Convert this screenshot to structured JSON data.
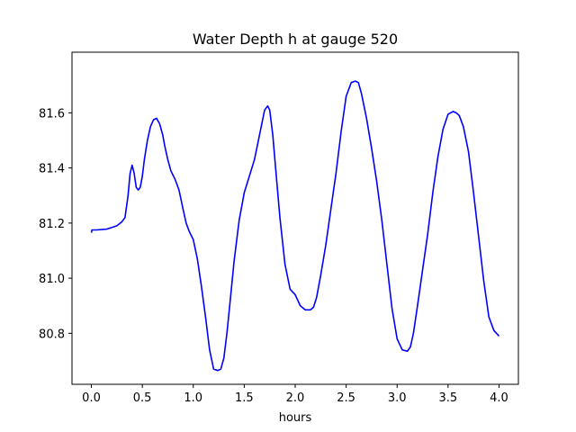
{
  "chart_data": {
    "type": "line",
    "title": "Water Depth h at gauge 520",
    "xlabel": "hours",
    "ylabel": "",
    "xlim": [
      -0.19,
      4.19
    ],
    "ylim": [
      80.615,
      81.82
    ],
    "xticks": [
      0.0,
      0.5,
      1.0,
      1.5,
      2.0,
      2.5,
      3.0,
      3.5,
      4.0
    ],
    "xtick_labels": [
      "0.0",
      "0.5",
      "1.0",
      "1.5",
      "2.0",
      "2.5",
      "3.0",
      "3.5",
      "4.0"
    ],
    "yticks": [
      80.8,
      81.0,
      81.2,
      81.4,
      81.6
    ],
    "ytick_labels": [
      "80.8",
      "81.0",
      "81.2",
      "81.4",
      "81.6"
    ],
    "grid": false,
    "series": [
      {
        "color": "#0000ff",
        "x": [
          0.0,
          0.005,
          0.05,
          0.15,
          0.25,
          0.3,
          0.33,
          0.36,
          0.38,
          0.4,
          0.42,
          0.44,
          0.46,
          0.48,
          0.5,
          0.52,
          0.55,
          0.58,
          0.61,
          0.64,
          0.67,
          0.7,
          0.72,
          0.75,
          0.78,
          0.82,
          0.86,
          0.9,
          0.93,
          0.96,
          1.0,
          1.04,
          1.08,
          1.12,
          1.16,
          1.2,
          1.24,
          1.27,
          1.3,
          1.33,
          1.36,
          1.4,
          1.45,
          1.5,
          1.55,
          1.6,
          1.65,
          1.7,
          1.73,
          1.75,
          1.78,
          1.81,
          1.85,
          1.9,
          1.95,
          2.0,
          2.05,
          2.1,
          2.15,
          2.18,
          2.21,
          2.25,
          2.3,
          2.35,
          2.4,
          2.45,
          2.5,
          2.55,
          2.59,
          2.62,
          2.65,
          2.7,
          2.75,
          2.8,
          2.85,
          2.9,
          2.95,
          3.0,
          3.05,
          3.1,
          3.13,
          3.16,
          3.2,
          3.25,
          3.3,
          3.35,
          3.4,
          3.45,
          3.5,
          3.55,
          3.58,
          3.61,
          3.65,
          3.7,
          3.75,
          3.8,
          3.85,
          3.9,
          3.95,
          4.0
        ],
        "values": [
          81.165,
          81.175,
          81.175,
          81.178,
          81.19,
          81.205,
          81.22,
          81.3,
          81.38,
          81.41,
          81.38,
          81.33,
          81.32,
          81.33,
          81.37,
          81.43,
          81.5,
          81.55,
          81.575,
          81.58,
          81.56,
          81.52,
          81.48,
          81.43,
          81.39,
          81.36,
          81.32,
          81.25,
          81.2,
          81.17,
          81.14,
          81.07,
          80.97,
          80.86,
          80.74,
          80.67,
          80.665,
          80.67,
          80.71,
          80.8,
          80.91,
          81.06,
          81.21,
          81.31,
          81.37,
          81.43,
          81.52,
          81.61,
          81.625,
          81.61,
          81.52,
          81.39,
          81.22,
          81.05,
          80.96,
          80.94,
          80.9,
          80.885,
          80.885,
          80.895,
          80.93,
          81.01,
          81.12,
          81.25,
          81.38,
          81.53,
          81.66,
          81.71,
          81.715,
          81.71,
          81.67,
          81.58,
          81.47,
          81.35,
          81.21,
          81.05,
          80.89,
          80.78,
          80.74,
          80.735,
          80.75,
          80.8,
          80.9,
          81.03,
          81.16,
          81.31,
          81.44,
          81.54,
          81.595,
          81.605,
          81.6,
          81.59,
          81.55,
          81.46,
          81.31,
          81.15,
          80.99,
          80.86,
          80.81,
          80.79
        ]
      }
    ]
  }
}
